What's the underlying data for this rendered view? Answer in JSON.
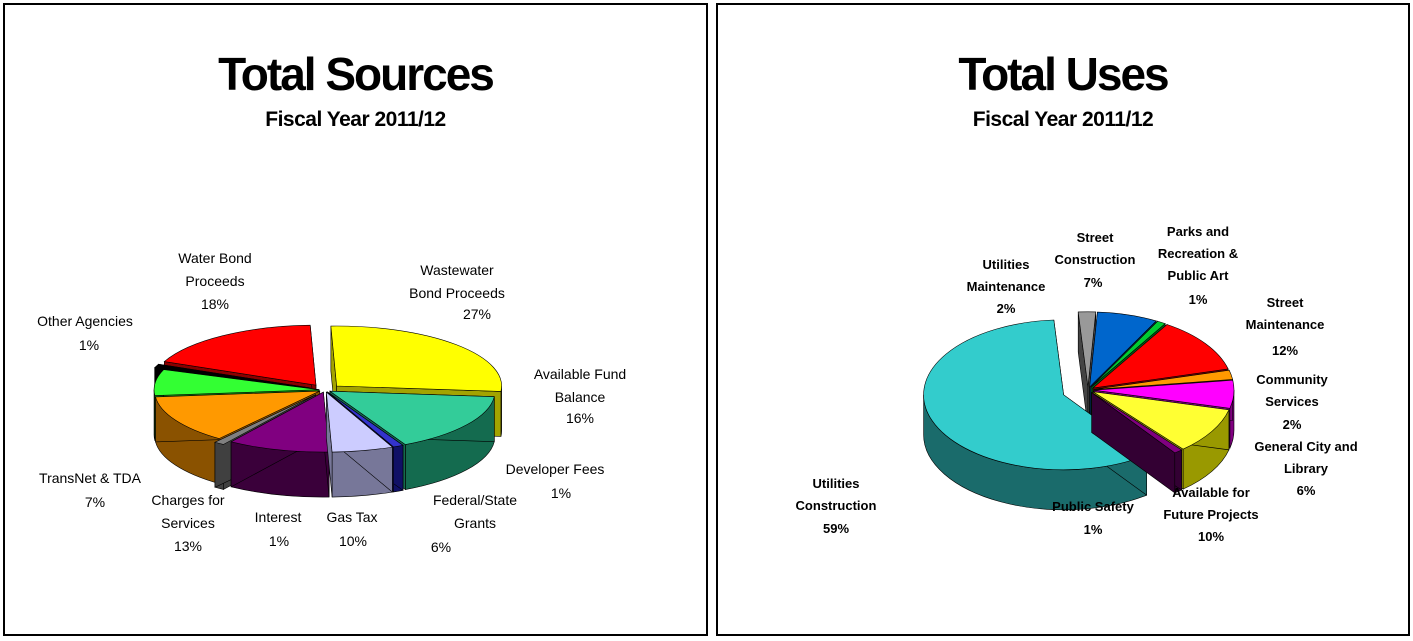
{
  "chart_data": [
    {
      "type": "pie",
      "title": "Total Sources",
      "subtitle": "Fiscal Year 2011/12",
      "slices": [
        {
          "label": "Wastewater Bond Proceeds",
          "value": 27,
          "pct_label": "27%",
          "color": "#ffff00",
          "side": "#a3a300"
        },
        {
          "label": "Available Fund Balance",
          "value": 16,
          "pct_label": "16%",
          "color": "#33cc99",
          "side": "#146b4f"
        },
        {
          "label": "Developer Fees",
          "value": 1,
          "pct_label": "1%",
          "color": "#3333cc",
          "side": "#101066"
        },
        {
          "label": "Federal/State Grants",
          "value": 6,
          "pct_label": "6%",
          "color": "#ccccff",
          "side": "#777799"
        },
        {
          "label": "Gas Tax",
          "value": 10,
          "pct_label": "10%",
          "color": "#800080",
          "side": "#3a003a"
        },
        {
          "label": "Interest",
          "value": 1,
          "pct_label": "1%",
          "color": "#808080",
          "side": "#404040"
        },
        {
          "label": "Charges for Services",
          "value": 13,
          "pct_label": "13%",
          "color": "#ff9900",
          "side": "#8a5200"
        },
        {
          "label": "TransNet & TDA",
          "value": 7,
          "pct_label": "7%",
          "color": "#33ff33",
          "side": "#138f13"
        },
        {
          "label": "Other Agencies",
          "value": 1,
          "pct_label": "1%",
          "color": "#000000",
          "side": "#000000"
        },
        {
          "label": "Water Bond Proceeds",
          "value": 18,
          "pct_label": "18%",
          "color": "#ff0000",
          "side": "#8a0000"
        }
      ]
    },
    {
      "type": "pie",
      "title": "Total Uses",
      "subtitle": "Fiscal Year 2011/12",
      "slices": [
        {
          "label": "Utilities Maintenance",
          "value": 2,
          "pct_label": "2%",
          "color": "#999999",
          "side": "#444444"
        },
        {
          "label": "Street Construction",
          "value": 7,
          "pct_label": "7%",
          "color": "#0066cc",
          "side": "#003366"
        },
        {
          "label": "Parks and Recreation & Public Art",
          "value": 1,
          "pct_label": "1%",
          "color": "#00cc33",
          "side": "#006619"
        },
        {
          "label": "Street Maintenance",
          "value": 12,
          "pct_label": "12%",
          "color": "#ff0000",
          "side": "#800000"
        },
        {
          "label": "Community Services",
          "value": 2,
          "pct_label": "2%",
          "color": "#ff9900",
          "side": "#804c00"
        },
        {
          "label": "General City and Library",
          "value": 6,
          "pct_label": "6%",
          "color": "#ff00ff",
          "side": "#800080"
        },
        {
          "label": "Available for Future Projects",
          "value": 10,
          "pct_label": "10%",
          "color": "#ffff33",
          "side": "#999900"
        },
        {
          "label": "Public Safety",
          "value": 1,
          "pct_label": "1%",
          "color": "#800080",
          "side": "#330033"
        },
        {
          "label": "Utilities Construction",
          "value": 59,
          "pct_label": "59%",
          "color": "#33cccc",
          "side": "#1a6b6b"
        }
      ]
    }
  ]
}
